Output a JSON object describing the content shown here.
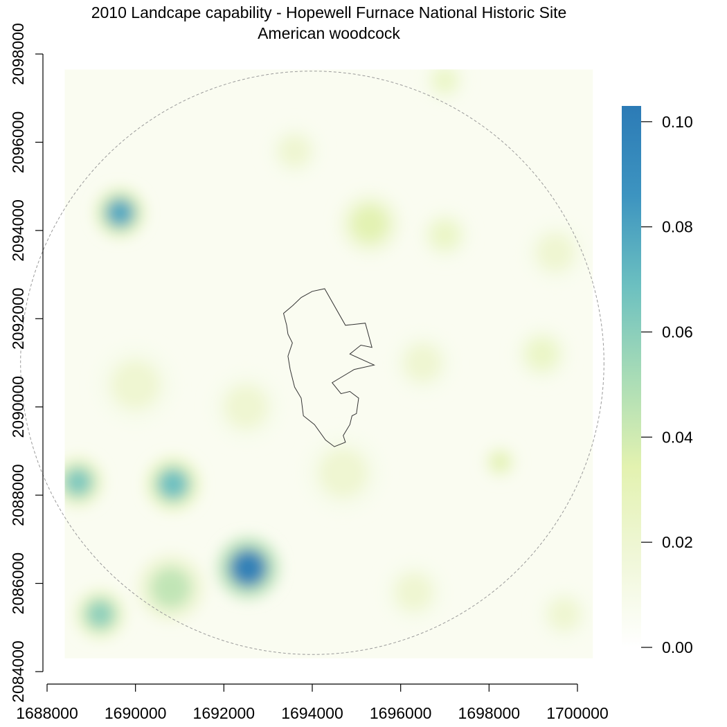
{
  "chart_data": {
    "type": "heatmap",
    "title": "2010 Landcape capability - Hopewell Furnace National Historic Site",
    "subtitle": "American woodcock",
    "xlabel": "",
    "ylabel": "",
    "xlim": [
      1688000,
      1700000
    ],
    "ylim": [
      2084000,
      2098000
    ],
    "x_ticks": [
      {
        "value": 1688000,
        "label": "1688000"
      },
      {
        "value": 1690000,
        "label": "1690000"
      },
      {
        "value": 1692000,
        "label": "1692000"
      },
      {
        "value": 1694000,
        "label": "1694000"
      },
      {
        "value": 1696000,
        "label": "1696000"
      },
      {
        "value": 1698000,
        "label": "1698000"
      },
      {
        "value": 1700000,
        "label": "1700000"
      }
    ],
    "y_ticks": [
      {
        "value": 2084000,
        "label": "2084000"
      },
      {
        "value": 2086000,
        "label": "2086000"
      },
      {
        "value": 2088000,
        "label": "2088000"
      },
      {
        "value": 2090000,
        "label": "2090000"
      },
      {
        "value": 2092000,
        "label": "2092000"
      },
      {
        "value": 2094000,
        "label": "2094000"
      },
      {
        "value": 2096000,
        "label": "2096000"
      },
      {
        "value": 2098000,
        "label": "2098000"
      }
    ],
    "raster_extent": {
      "x": [
        1688400,
        1700350
      ],
      "y": [
        2084300,
        2097650
      ]
    },
    "colorbar": {
      "range": [
        0,
        0.103
      ],
      "ticks": [
        {
          "value": 0,
          "label": "0.00"
        },
        {
          "value": 0.02,
          "label": "0.02"
        },
        {
          "value": 0.04,
          "label": "0.04"
        },
        {
          "value": 0.06,
          "label": "0.06"
        },
        {
          "value": 0.08,
          "label": "0.08"
        },
        {
          "value": 0.1,
          "label": "0.10"
        }
      ],
      "colors": [
        "#ffffff",
        "#f0f7d8",
        "#e3f2b0",
        "#a8dcb6",
        "#6cc0c0",
        "#3d94c0",
        "#2c7bb6"
      ]
    },
    "hotspots": [
      {
        "x": 1692550,
        "y": 2086350,
        "value": 0.103,
        "radius": 700
      },
      {
        "x": 1690850,
        "y": 2088250,
        "value": 0.07,
        "radius": 600
      },
      {
        "x": 1689650,
        "y": 2094400,
        "value": 0.08,
        "radius": 550
      },
      {
        "x": 1688700,
        "y": 2088300,
        "value": 0.065,
        "radius": 550
      },
      {
        "x": 1689200,
        "y": 2085300,
        "value": 0.06,
        "radius": 550
      },
      {
        "x": 1690800,
        "y": 2085900,
        "value": 0.045,
        "radius": 750
      },
      {
        "x": 1695300,
        "y": 2094150,
        "value": 0.035,
        "radius": 700
      },
      {
        "x": 1698250,
        "y": 2088750,
        "value": 0.035,
        "radius": 350
      },
      {
        "x": 1697000,
        "y": 2093900,
        "value": 0.025,
        "radius": 550
      },
      {
        "x": 1699200,
        "y": 2091200,
        "value": 0.025,
        "radius": 600
      },
      {
        "x": 1699500,
        "y": 2093500,
        "value": 0.02,
        "radius": 700
      },
      {
        "x": 1697000,
        "y": 2097400,
        "value": 0.025,
        "radius": 450
      },
      {
        "x": 1690000,
        "y": 2090500,
        "value": 0.02,
        "radius": 900
      },
      {
        "x": 1694700,
        "y": 2088500,
        "value": 0.02,
        "radius": 900
      },
      {
        "x": 1693600,
        "y": 2095800,
        "value": 0.02,
        "radius": 600
      },
      {
        "x": 1696500,
        "y": 2091000,
        "value": 0.02,
        "radius": 700
      },
      {
        "x": 1692500,
        "y": 2090000,
        "value": 0.02,
        "radius": 800
      },
      {
        "x": 1696300,
        "y": 2085800,
        "value": 0.02,
        "radius": 700
      },
      {
        "x": 1699700,
        "y": 2085300,
        "value": 0.02,
        "radius": 600
      }
    ],
    "study_area_circle": {
      "center": [
        1694000,
        2091000
      ],
      "radius": 6600
    },
    "site_boundary": [
      [
        1693420,
        2091850
      ],
      [
        1693350,
        2092120
      ],
      [
        1693560,
        2092300
      ],
      [
        1693750,
        2092480
      ],
      [
        1694000,
        2092620
      ],
      [
        1694280,
        2092680
      ],
      [
        1694750,
        2091850
      ],
      [
        1695200,
        2091900
      ],
      [
        1695350,
        2091350
      ],
      [
        1695100,
        2091400
      ],
      [
        1694850,
        2091200
      ],
      [
        1695400,
        2090950
      ],
      [
        1694950,
        2090850
      ],
      [
        1694450,
        2090550
      ],
      [
        1694650,
        2090300
      ],
      [
        1694850,
        2090350
      ],
      [
        1695050,
        2090200
      ],
      [
        1695000,
        2089850
      ],
      [
        1694900,
        2089800
      ],
      [
        1694850,
        2089600
      ],
      [
        1694700,
        2089350
      ],
      [
        1694750,
        2089200
      ],
      [
        1694500,
        2089100
      ],
      [
        1694300,
        2089250
      ],
      [
        1694050,
        2089600
      ],
      [
        1693800,
        2089800
      ],
      [
        1693750,
        2090200
      ],
      [
        1693600,
        2090450
      ],
      [
        1693500,
        2090850
      ],
      [
        1693450,
        2091150
      ],
      [
        1693550,
        2091450
      ],
      [
        1693450,
        2091650
      ],
      [
        1693420,
        2091850
      ]
    ]
  }
}
